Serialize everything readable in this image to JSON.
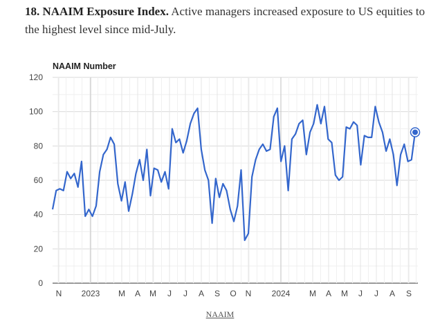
{
  "caption": {
    "heading": "18. NAAIM Exposure Index.",
    "text": "Active managers increased exposure to US equities to the highest level since mid-July."
  },
  "source_link": "NAAIM",
  "chart_data": {
    "type": "line",
    "title": "NAAIM Number",
    "xlabel": "",
    "ylabel": "",
    "ylim": [
      0,
      120
    ],
    "yticks": [
      0,
      20,
      40,
      60,
      80,
      100,
      120
    ],
    "grid": true,
    "legend": "none",
    "line_color": "#3366cc",
    "x_tick_labels": [
      "N",
      "2023",
      "M",
      "A",
      "M",
      "J",
      "J",
      "A",
      "S",
      "O",
      "N",
      "2024",
      "M",
      "A",
      "M",
      "J",
      "J",
      "A",
      "S"
    ],
    "series": [
      {
        "values": [
          43,
          54,
          55,
          54,
          65,
          61,
          64,
          56,
          71,
          39,
          43,
          39,
          45,
          65,
          75,
          78,
          85,
          81,
          58,
          48,
          59,
          42,
          52,
          64,
          72,
          60,
          78,
          51,
          67,
          66,
          59,
          65,
          55,
          90,
          82,
          84,
          76,
          83,
          93,
          99,
          102,
          78,
          66,
          60,
          35,
          61,
          50,
          58,
          54,
          43,
          36,
          45,
          66,
          25,
          29,
          62,
          72,
          78,
          81,
          77,
          78,
          97,
          102,
          71,
          80,
          54,
          84,
          87,
          93,
          95,
          75,
          88,
          93,
          104,
          93,
          103,
          84,
          82,
          63,
          60,
          62,
          91,
          90,
          94,
          92,
          69,
          86,
          85,
          85,
          103,
          94,
          88,
          77,
          84,
          75,
          57,
          75,
          81,
          71,
          72,
          88
        ]
      }
    ]
  }
}
